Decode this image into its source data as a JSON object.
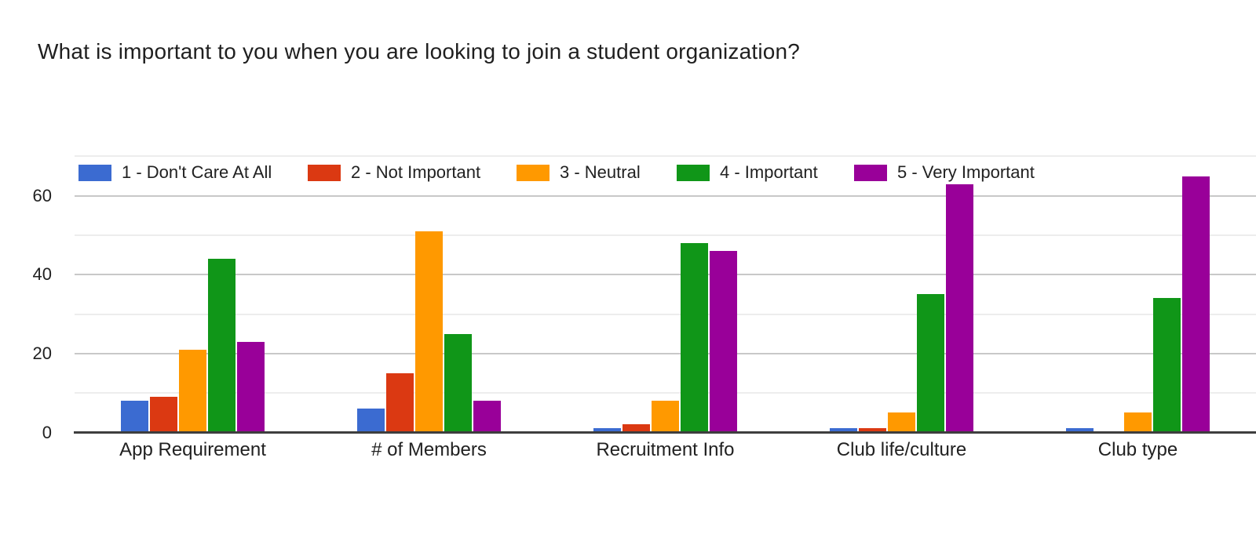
{
  "title": "What is important to you when you are looking to join a student organization?",
  "chart_data": {
    "type": "bar",
    "grouped": true,
    "title": "What is important to you when you are looking to join a student organization?",
    "categories": [
      "App Requirement",
      "# of Members",
      "Recruitment Info",
      "Club life/culture",
      "Club type"
    ],
    "series": [
      {
        "name": "1 - Don't Care At All",
        "color": "#3B6BD1",
        "values": [
          8,
          6,
          1,
          1,
          1
        ]
      },
      {
        "name": "2 - Not Important",
        "color": "#DB3912",
        "values": [
          9,
          15,
          2,
          1,
          0
        ]
      },
      {
        "name": "3 - Neutral",
        "color": "#FF9900",
        "values": [
          21,
          51,
          8,
          5,
          5
        ]
      },
      {
        "name": "4 - Important",
        "color": "#109618",
        "values": [
          44,
          25,
          48,
          35,
          34
        ]
      },
      {
        "name": "5 - Very Important",
        "color": "#990099",
        "values": [
          23,
          8,
          46,
          63,
          65
        ]
      }
    ],
    "xlabel": "",
    "ylabel": "",
    "ylim": [
      0,
      70
    ],
    "y_ticks": [
      0,
      20,
      40,
      60
    ],
    "y_minor_gridlines": [
      10,
      30,
      50,
      70
    ],
    "grid": true,
    "legend_position": "top"
  },
  "colors": {
    "background": "#FFFFFF",
    "text": "#212121",
    "axis_line": "#3E3E3E",
    "major_gridline": "#C8C8C8",
    "minor_gridline": "#EDEDED"
  }
}
